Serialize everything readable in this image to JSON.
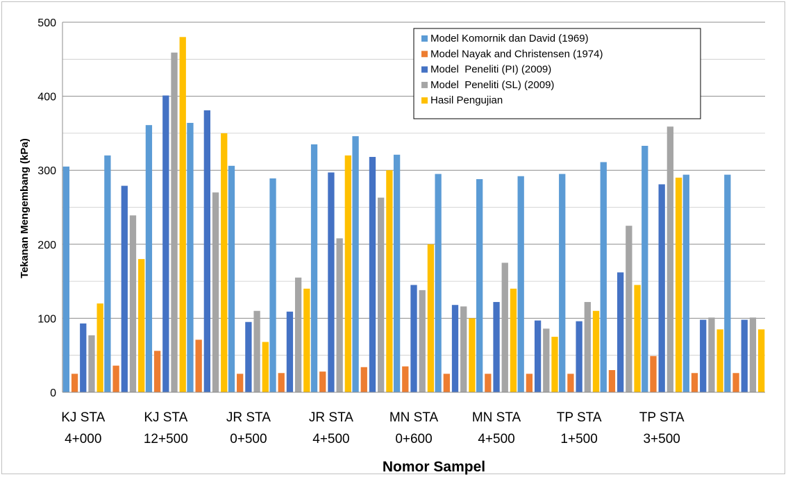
{
  "chart_data": {
    "type": "bar",
    "title": "",
    "xlabel": "Nomor Sampel",
    "ylabel": "Tekanan Mengembang (kPa)",
    "ylim": [
      0,
      500
    ],
    "yticks": [
      0,
      100,
      200,
      300,
      400,
      500
    ],
    "grid": true,
    "legend_position": "top-right",
    "category_label_lines": [
      [
        "KJ STA",
        "4+000"
      ],
      [
        "KJ STA",
        "12+500"
      ],
      [
        "JR STA",
        "0+500"
      ],
      [
        "JR STA",
        "4+500"
      ],
      [
        "MN STA",
        "0+600"
      ],
      [
        "MN STA",
        "4+500"
      ],
      [
        "TP STA",
        "1+500"
      ],
      [
        "TP STA",
        "3+500"
      ]
    ],
    "categories": [
      "1",
      "2",
      "3",
      "4",
      "5",
      "6",
      "7",
      "8",
      "9",
      "10",
      "11",
      "12",
      "13",
      "14",
      "15",
      "16",
      "17"
    ],
    "series": [
      {
        "name": "Model Komornik dan David (1969)",
        "color": "#5b9bd5",
        "values": [
          305,
          320,
          361,
          364,
          306,
          289,
          335,
          346,
          321,
          295,
          288,
          292,
          295,
          311,
          333,
          294,
          294
        ]
      },
      {
        "name": "Model Nayak and Christensen (1974)",
        "color": "#ed7d31",
        "values": [
          25,
          36,
          56,
          71,
          25,
          26,
          28,
          34,
          35,
          25,
          25,
          25,
          25,
          30,
          49,
          26,
          26
        ]
      },
      {
        "name": "Model  Peneliti (PI) (2009)",
        "color": "#4472c4",
        "values": [
          93,
          279,
          401,
          381,
          95,
          109,
          297,
          318,
          145,
          118,
          122,
          97,
          96,
          162,
          281,
          98,
          98
        ]
      },
      {
        "name": "Model  Peneliti (SL) (2009)",
        "color": "#a5a5a5",
        "values": [
          77,
          239,
          459,
          270,
          110,
          155,
          208,
          263,
          138,
          116,
          175,
          86,
          122,
          225,
          359,
          101,
          101
        ]
      },
      {
        "name": "Hasil Pengujian",
        "color": "#ffc000",
        "values": [
          120,
          180,
          480,
          350,
          68,
          140,
          320,
          300,
          200,
          100,
          140,
          75,
          110,
          145,
          290,
          85,
          85
        ]
      }
    ]
  }
}
